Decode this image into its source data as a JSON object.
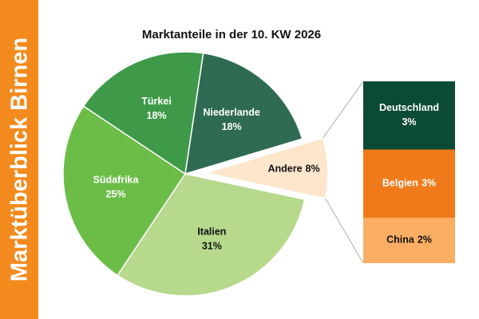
{
  "banner": "Marktüberblick Birnen",
  "chart_data": {
    "type": "pie-of-bar",
    "title": "Marktanteile in der 10. KW 2026",
    "categories": [
      "Niederlande",
      "Andere",
      "Italien",
      "Südafrika",
      "Türkei"
    ],
    "values": [
      18,
      8,
      31,
      25,
      18
    ],
    "value_labels": [
      "18%",
      "8%",
      "31%",
      "25%",
      "18%"
    ],
    "colors": [
      "#2e6b52",
      "#fde6cc",
      "#b6d98b",
      "#6cbd48",
      "#3e9a48"
    ],
    "breakdown": {
      "categories": [
        "Deutschland",
        "Belgien",
        "China"
      ],
      "values": [
        3,
        3,
        2
      ],
      "value_labels": [
        "3%",
        "3%",
        "2%"
      ],
      "colors": [
        "#0b4a33",
        "#f07a1a",
        "#f9ae63"
      ]
    }
  }
}
